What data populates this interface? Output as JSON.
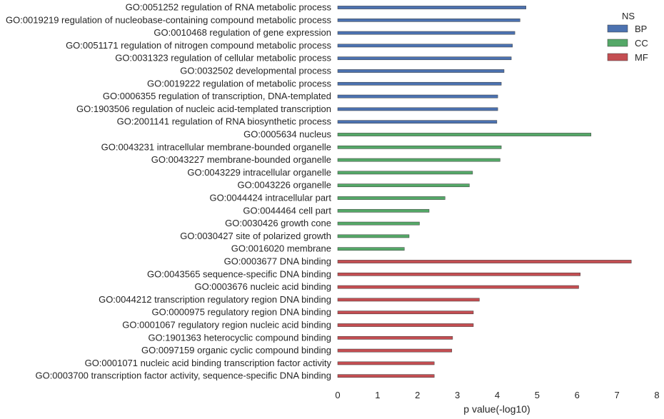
{
  "chart_data": {
    "type": "bar",
    "orientation": "horizontal",
    "xlabel": "p value(-log10)",
    "xlim": [
      0,
      8
    ],
    "xticks": [
      0,
      1,
      2,
      3,
      4,
      5,
      6,
      7,
      8
    ],
    "grid": false,
    "legend": {
      "title": "NS",
      "placement": "top-right",
      "entries": [
        {
          "name": "BP",
          "color": "#4C72B0"
        },
        {
          "name": "CC",
          "color": "#55A868"
        },
        {
          "name": "MF",
          "color": "#C44E52"
        }
      ]
    },
    "categories": [
      {
        "label": "GO:0051252 regulation of RNA metabolic process",
        "ns": "BP",
        "value": 4.72
      },
      {
        "label": "GO:0019219 regulation of nucleobase-containing compound metabolic process",
        "ns": "BP",
        "value": 4.57
      },
      {
        "label": "GO:0010468 regulation of gene expression",
        "ns": "BP",
        "value": 4.44
      },
      {
        "label": "GO:0051171 regulation of nitrogen compound metabolic process",
        "ns": "BP",
        "value": 4.38
      },
      {
        "label": "GO:0031323 regulation of cellular metabolic process",
        "ns": "BP",
        "value": 4.35
      },
      {
        "label": "GO:0032502 developmental process",
        "ns": "BP",
        "value": 4.17
      },
      {
        "label": "GO:0019222 regulation of metabolic process",
        "ns": "BP",
        "value": 4.1
      },
      {
        "label": "GO:0006355 regulation of transcription, DNA-templated",
        "ns": "BP",
        "value": 4.01
      },
      {
        "label": "GO:1903506 regulation of nucleic acid-templated transcription",
        "ns": "BP",
        "value": 4.01
      },
      {
        "label": "GO:2001141 regulation of RNA biosynthetic process",
        "ns": "BP",
        "value": 3.99
      },
      {
        "label": "GO:0005634 nucleus",
        "ns": "CC",
        "value": 6.35
      },
      {
        "label": "GO:0043231 intracellular membrane-bounded organelle",
        "ns": "CC",
        "value": 4.1
      },
      {
        "label": "GO:0043227 membrane-bounded organelle",
        "ns": "CC",
        "value": 4.07
      },
      {
        "label": "GO:0043229 intracellular organelle",
        "ns": "CC",
        "value": 3.38
      },
      {
        "label": "GO:0043226 organelle",
        "ns": "CC",
        "value": 3.3
      },
      {
        "label": "GO:0044424 intracellular part",
        "ns": "CC",
        "value": 2.69
      },
      {
        "label": "GO:0044464 cell part",
        "ns": "CC",
        "value": 2.29
      },
      {
        "label": "GO:0030426 growth cone",
        "ns": "CC",
        "value": 2.05
      },
      {
        "label": "GO:0030427 site of polarized growth",
        "ns": "CC",
        "value": 1.79
      },
      {
        "label": "GO:0016020 membrane",
        "ns": "CC",
        "value": 1.67
      },
      {
        "label": "GO:0003677 DNA binding",
        "ns": "MF",
        "value": 7.36
      },
      {
        "label": "GO:0043565 sequence-specific DNA binding",
        "ns": "MF",
        "value": 6.08
      },
      {
        "label": "GO:0003676 nucleic acid binding",
        "ns": "MF",
        "value": 6.04
      },
      {
        "label": "GO:0044212 transcription regulatory region DNA binding",
        "ns": "MF",
        "value": 3.55
      },
      {
        "label": "GO:0000975 regulatory region DNA binding",
        "ns": "MF",
        "value": 3.4
      },
      {
        "label": "GO:0001067 regulatory region nucleic acid binding",
        "ns": "MF",
        "value": 3.4
      },
      {
        "label": "GO:1901363 heterocyclic compound binding",
        "ns": "MF",
        "value": 2.88
      },
      {
        "label": "GO:0097159 organic cyclic compound binding",
        "ns": "MF",
        "value": 2.86
      },
      {
        "label": "GO:0001071 nucleic acid binding transcription factor activity",
        "ns": "MF",
        "value": 2.42
      },
      {
        "label": "GO:0003700 transcription factor activity, sequence-specific DNA binding",
        "ns": "MF",
        "value": 2.42
      }
    ]
  }
}
